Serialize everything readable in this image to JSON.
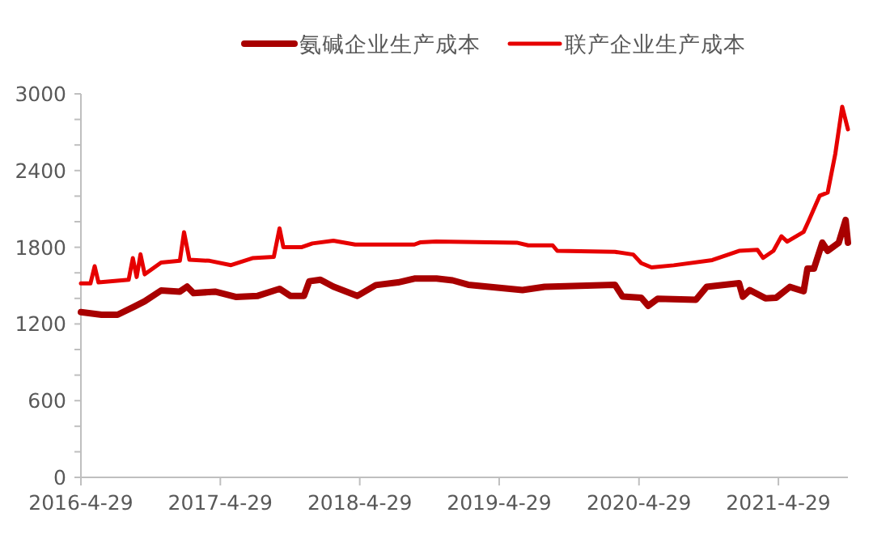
{
  "chart_data": {
    "type": "line",
    "legend": "top",
    "xlim": [
      "2016-04-29",
      "2021-10-28"
    ],
    "xticks": [
      {
        "value": "2016-04-29",
        "label": "2016-4-29"
      },
      {
        "value": "2017-04-29",
        "label": "2017-4-29"
      },
      {
        "value": "2018-04-29",
        "label": "2018-4-29"
      },
      {
        "value": "2019-04-29",
        "label": "2019-4-29"
      },
      {
        "value": "2020-04-29",
        "label": "2020-4-29"
      },
      {
        "value": "2021-04-29",
        "label": "2021-4-29"
      }
    ],
    "ylim": [
      0,
      3000
    ],
    "yticks": [
      0,
      {
        "value": 200,
        "label": null
      },
      {
        "value": 400,
        "label": null
      },
      600,
      {
        "value": 800,
        "label": null
      },
      {
        "value": 1000,
        "label": null
      },
      1200,
      {
        "value": 1400,
        "label": null
      },
      {
        "value": 1600,
        "label": null
      },
      1800,
      {
        "value": 2000,
        "label": null
      },
      {
        "value": 2200,
        "label": null
      },
      2400,
      {
        "value": 2600,
        "label": null
      },
      {
        "value": 2800,
        "label": null
      },
      3000
    ],
    "series": [
      {
        "name": "氨碱企业生产成本",
        "color": "#a80000",
        "x": [
          "2016-04-29",
          "2016-06-22",
          "2016-08-03",
          "2016-09-15",
          "2016-10-13",
          "2016-11-25",
          "2017-01-13",
          "2017-02-01",
          "2017-02-18",
          "2017-04-15",
          "2017-06-10",
          "2017-08-05",
          "2017-10-01",
          "2017-10-29",
          "2017-12-04",
          "2017-12-18",
          "2018-01-16",
          "2018-02-19",
          "2018-04-23",
          "2018-06-10",
          "2018-08-07",
          "2018-09-19",
          "2018-11-16",
          "2018-12-28",
          "2019-02-07",
          "2019-06-29",
          "2019-08-26",
          "2020-02-26",
          "2020-03-17",
          "2020-05-05",
          "2020-05-23",
          "2020-06-17",
          "2020-09-25",
          "2020-10-23",
          "2021-01-16",
          "2021-01-26",
          "2021-02-13",
          "2021-03-26",
          "2021-04-23",
          "2021-05-29",
          "2021-07-04",
          "2021-07-14",
          "2021-07-31",
          "2021-08-22",
          "2021-09-05",
          "2021-10-04",
          "2021-10-22",
          "2021-10-28"
        ],
        "values": [
          1293,
          1272,
          1272,
          1335,
          1377,
          1462,
          1453,
          1492,
          1441,
          1453,
          1411,
          1420,
          1475,
          1420,
          1420,
          1534,
          1546,
          1492,
          1420,
          1504,
          1525,
          1555,
          1555,
          1541,
          1507,
          1465,
          1490,
          1507,
          1414,
          1405,
          1342,
          1397,
          1389,
          1490,
          1519,
          1414,
          1465,
          1401,
          1405,
          1490,
          1456,
          1633,
          1633,
          1836,
          1772,
          1836,
          2013,
          1836
        ]
      },
      {
        "name": "联产企业生产成本",
        "color": "#e60000",
        "x": [
          "2016-04-29",
          "2016-05-24",
          "2016-06-04",
          "2016-06-14",
          "2016-09-01",
          "2016-09-12",
          "2016-09-22",
          "2016-10-02",
          "2016-10-13",
          "2016-11-25",
          "2017-01-13",
          "2017-01-24",
          "2017-02-07",
          "2017-04-01",
          "2017-05-27",
          "2017-07-22",
          "2017-09-16",
          "2017-10-01",
          "2017-10-11",
          "2017-11-27",
          "2017-12-26",
          "2018-02-19",
          "2018-04-17",
          "2018-09-19",
          "2018-10-04",
          "2018-11-15",
          "2019-06-14",
          "2019-07-14",
          "2019-09-16",
          "2019-09-28",
          "2020-02-26",
          "2020-04-14",
          "2020-05-05",
          "2020-06-01",
          "2020-07-29",
          "2020-11-07",
          "2021-01-16",
          "2021-03-05",
          "2021-03-20",
          "2021-04-16",
          "2021-05-07",
          "2021-05-22",
          "2021-07-04",
          "2021-07-17",
          "2021-08-15",
          "2021-09-05",
          "2021-09-25",
          "2021-10-13",
          "2021-10-28"
        ],
        "values": [
          1517,
          1517,
          1652,
          1525,
          1546,
          1715,
          1567,
          1745,
          1588,
          1681,
          1694,
          1918,
          1703,
          1694,
          1660,
          1715,
          1724,
          1948,
          1800,
          1800,
          1830,
          1851,
          1821,
          1821,
          1838,
          1845,
          1836,
          1815,
          1815,
          1772,
          1764,
          1743,
          1676,
          1642,
          1659,
          1700,
          1772,
          1780,
          1717,
          1772,
          1886,
          1844,
          1920,
          2005,
          2203,
          2228,
          2532,
          2899,
          2722
        ]
      }
    ]
  }
}
